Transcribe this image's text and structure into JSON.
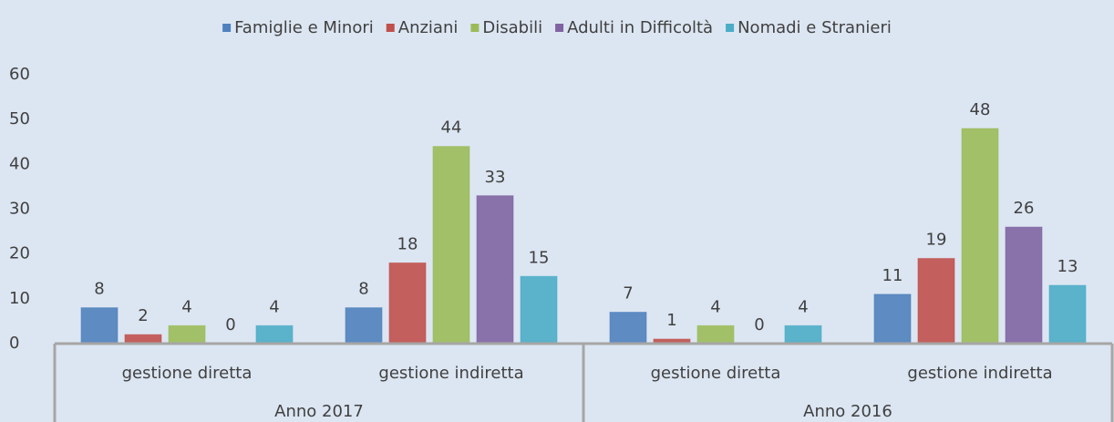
{
  "chart_data": {
    "type": "bar",
    "categories": [
      "gestione diretta",
      "gestione indiretta",
      "gestione diretta",
      "gestione indiretta"
    ],
    "category_groups": [
      "Anno 2017",
      "Anno 2016"
    ],
    "series": [
      {
        "name": "Famiglie e Minori",
        "color": "#4f81bd",
        "values": [
          8,
          8,
          7,
          11
        ]
      },
      {
        "name": "Anziani",
        "color": "#c0504d",
        "values": [
          2,
          18,
          1,
          19
        ]
      },
      {
        "name": "Disabili",
        "color": "#9bbb59",
        "values": [
          4,
          44,
          4,
          48
        ]
      },
      {
        "name": "Adulti in Difficoltà",
        "color": "#8064a2",
        "values": [
          0,
          33,
          0,
          26
        ]
      },
      {
        "name": "Nomadi e Stranieri",
        "color": "#4bacc6",
        "values": [
          4,
          15,
          4,
          13
        ]
      }
    ],
    "ylim": [
      0,
      60
    ],
    "yticks": [
      0,
      10,
      20,
      30,
      40,
      50,
      60
    ],
    "grid": false,
    "legend": "top",
    "data_labels": true
  }
}
